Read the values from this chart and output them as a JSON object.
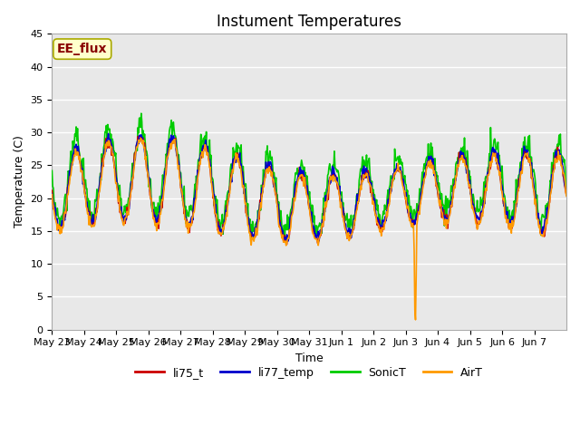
{
  "title": "Instument Temperatures",
  "xlabel": "Time",
  "ylabel": "Temperature (C)",
  "annotation": "EE_flux",
  "ylim": [
    0,
    45
  ],
  "xlim_days": 16,
  "x_tick_labels": [
    "May 23",
    "May 24",
    "May 25",
    "May 26",
    "May 27",
    "May 28",
    "May 29",
    "May 30",
    "May 31",
    "Jun 1",
    "Jun 2",
    "Jun 3",
    "Jun 4",
    "Jun 5",
    "Jun 6",
    "Jun 7"
  ],
  "x_tick_positions": [
    0,
    1,
    2,
    3,
    4,
    5,
    6,
    7,
    8,
    9,
    10,
    11,
    12,
    13,
    14,
    15
  ],
  "y_ticks": [
    0,
    5,
    10,
    15,
    20,
    25,
    30,
    35,
    40,
    45
  ],
  "colors": {
    "li75_t": "#cc0000",
    "li77_temp": "#0000cc",
    "SonicT": "#00cc00",
    "AirT": "#ff9900"
  },
  "bg_color": "#e8e8e8",
  "annotation_bg": "#ffffcc",
  "annotation_text_color": "#880000",
  "annotation_edge_color": "#aaaa00",
  "legend_labels": [
    "li75_t",
    "li77_temp",
    "SonicT",
    "AirT"
  ]
}
